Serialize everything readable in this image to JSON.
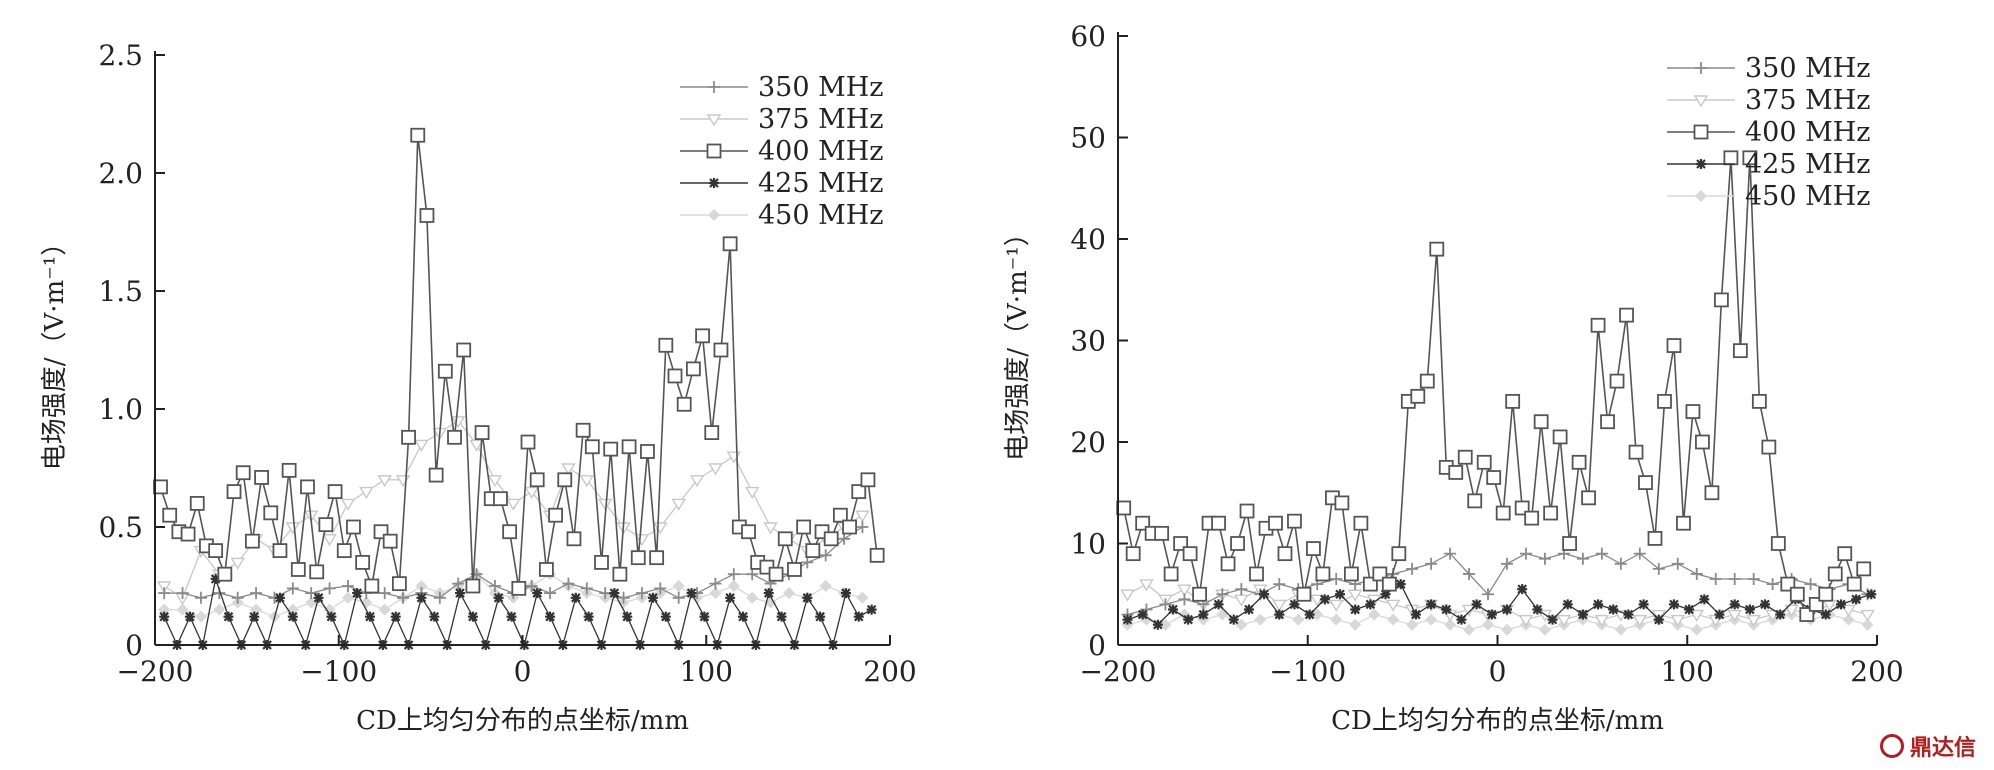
{
  "watermark": {
    "text": "鼎达信",
    "color": "#b21d1d"
  },
  "chart_data": [
    {
      "type": "line",
      "title": "",
      "xlabel": "CD上均匀分布的点坐标/mm",
      "ylabel": "电场强度/（V·m⁻¹）",
      "xlim": [
        -200,
        200
      ],
      "ylim": [
        0,
        2.5
      ],
      "xticks": [
        "−200",
        "−100",
        "0",
        "100",
        "200"
      ],
      "yticks": [
        "0",
        "0.5",
        "1.0",
        "1.5",
        "2.0",
        "2.5"
      ],
      "grid": false,
      "legend_position": "top-right",
      "series": [
        {
          "name": "350 MHz",
          "marker": "plus",
          "color": "#8a8a8a",
          "x": [
            -195,
            -185,
            -175,
            -165,
            -155,
            -145,
            -135,
            -125,
            -115,
            -105,
            -95,
            -85,
            -75,
            -65,
            -55,
            -45,
            -35,
            -25,
            -15,
            -5,
            5,
            15,
            25,
            35,
            45,
            55,
            65,
            75,
            85,
            95,
            105,
            115,
            125,
            135,
            145,
            155,
            165,
            175,
            185
          ],
          "y": [
            0.22,
            0.22,
            0.2,
            0.22,
            0.2,
            0.22,
            0.2,
            0.24,
            0.22,
            0.24,
            0.25,
            0.22,
            0.22,
            0.2,
            0.22,
            0.2,
            0.26,
            0.3,
            0.25,
            0.22,
            0.25,
            0.22,
            0.26,
            0.24,
            0.22,
            0.2,
            0.22,
            0.24,
            0.2,
            0.22,
            0.26,
            0.3,
            0.3,
            0.26,
            0.3,
            0.35,
            0.38,
            0.45,
            0.5
          ]
        },
        {
          "name": "375 MHz",
          "marker": "triangle-down",
          "color": "#c8c8c8",
          "x": [
            -195,
            -185,
            -175,
            -165,
            -155,
            -145,
            -135,
            -125,
            -115,
            -105,
            -95,
            -85,
            -75,
            -65,
            -55,
            -45,
            -35,
            -25,
            -15,
            -5,
            5,
            15,
            25,
            35,
            45,
            55,
            65,
            75,
            85,
            95,
            105,
            115,
            125,
            135,
            145,
            155,
            165,
            175,
            185
          ],
          "y": [
            0.25,
            0.2,
            0.4,
            0.3,
            0.35,
            0.45,
            0.4,
            0.5,
            0.55,
            0.45,
            0.6,
            0.65,
            0.7,
            0.7,
            0.85,
            0.9,
            0.95,
            0.85,
            0.7,
            0.6,
            0.65,
            0.55,
            0.75,
            0.7,
            0.6,
            0.5,
            0.45,
            0.5,
            0.6,
            0.7,
            0.75,
            0.8,
            0.65,
            0.5,
            0.45,
            0.4,
            0.45,
            0.5,
            0.55
          ]
        },
        {
          "name": "400 MHz",
          "marker": "square",
          "color": "#555555",
          "x": [
            -197,
            -192,
            -187,
            -182,
            -177,
            -172,
            -167,
            -162,
            -157,
            -152,
            -147,
            -142,
            -137,
            -132,
            -127,
            -122,
            -117,
            -112,
            -107,
            -102,
            -97,
            -92,
            -87,
            -82,
            -77,
            -72,
            -67,
            -62,
            -57,
            -52,
            -47,
            -42,
            -37,
            -32,
            -27,
            -22,
            -17,
            -12,
            -7,
            -2,
            3,
            8,
            13,
            18,
            23,
            28,
            33,
            38,
            43,
            48,
            53,
            58,
            63,
            68,
            73,
            78,
            83,
            88,
            93,
            98,
            103,
            108,
            113,
            118,
            123,
            128,
            133,
            138,
            143,
            148,
            153,
            158,
            163,
            168,
            173,
            178,
            183,
            188,
            193
          ],
          "y": [
            0.67,
            0.55,
            0.48,
            0.47,
            0.6,
            0.42,
            0.4,
            0.3,
            0.65,
            0.73,
            0.44,
            0.71,
            0.56,
            0.4,
            0.74,
            0.32,
            0.67,
            0.31,
            0.51,
            0.65,
            0.4,
            0.5,
            0.35,
            0.25,
            0.48,
            0.44,
            0.26,
            0.88,
            2.16,
            1.82,
            0.72,
            1.16,
            0.88,
            1.25,
            0.25,
            0.9,
            0.62,
            0.62,
            0.48,
            0.24,
            0.86,
            0.7,
            0.32,
            0.55,
            0.7,
            0.45,
            0.91,
            0.84,
            0.35,
            0.83,
            0.3,
            0.84,
            0.37,
            0.82,
            0.37,
            1.27,
            1.14,
            1.02,
            1.17,
            1.31,
            0.9,
            1.25,
            1.7,
            0.5,
            0.48,
            0.35,
            0.33,
            0.3,
            0.45,
            0.32,
            0.5,
            0.4,
            0.48,
            0.45,
            0.55,
            0.5,
            0.65,
            0.7,
            0.38
          ]
        },
        {
          "name": "425 MHz",
          "marker": "star",
          "color": "#333333",
          "x": [
            -195,
            -188,
            -181,
            -174,
            -167,
            -160,
            -153,
            -146,
            -139,
            -132,
            -125,
            -118,
            -111,
            -104,
            -97,
            -90,
            -83,
            -76,
            -69,
            -62,
            -55,
            -48,
            -41,
            -34,
            -27,
            -20,
            -13,
            -6,
            1,
            8,
            15,
            22,
            29,
            36,
            43,
            50,
            57,
            64,
            71,
            78,
            85,
            92,
            99,
            106,
            113,
            120,
            127,
            134,
            141,
            148,
            155,
            162,
            169,
            176,
            183,
            190
          ],
          "y": [
            0.12,
            0.0,
            0.12,
            0.0,
            0.28,
            0.12,
            0.0,
            0.12,
            0.0,
            0.2,
            0.12,
            0.0,
            0.2,
            0.12,
            0.0,
            0.22,
            0.12,
            0.0,
            0.12,
            0.0,
            0.2,
            0.12,
            0.0,
            0.22,
            0.12,
            0.0,
            0.2,
            0.12,
            0.0,
            0.22,
            0.12,
            0.0,
            0.2,
            0.12,
            0.0,
            0.22,
            0.12,
            0.0,
            0.2,
            0.12,
            0.0,
            0.22,
            0.12,
            0.0,
            0.2,
            0.12,
            0.0,
            0.22,
            0.12,
            0.0,
            0.2,
            0.12,
            0.0,
            0.22,
            0.12,
            0.15
          ]
        },
        {
          "name": "450 MHz",
          "marker": "diamond",
          "color": "#d8d8d8",
          "x": [
            -195,
            -185,
            -175,
            -165,
            -155,
            -145,
            -135,
            -125,
            -115,
            -105,
            -95,
            -85,
            -75,
            -65,
            -55,
            -45,
            -35,
            -25,
            -15,
            -5,
            5,
            15,
            25,
            35,
            45,
            55,
            65,
            75,
            85,
            95,
            105,
            115,
            125,
            135,
            145,
            155,
            165,
            175,
            185
          ],
          "y": [
            0.15,
            0.15,
            0.12,
            0.15,
            0.18,
            0.15,
            0.12,
            0.15,
            0.18,
            0.15,
            0.2,
            0.18,
            0.15,
            0.2,
            0.25,
            0.22,
            0.25,
            0.3,
            0.22,
            0.2,
            0.25,
            0.3,
            0.25,
            0.22,
            0.2,
            0.18,
            0.2,
            0.22,
            0.25,
            0.2,
            0.22,
            0.25,
            0.2,
            0.18,
            0.22,
            0.2,
            0.25,
            0.22,
            0.2
          ]
        }
      ]
    },
    {
      "type": "line",
      "title": "",
      "xlabel": "CD上均匀分布的点坐标/mm",
      "ylabel": "电场强度/（V·m⁻¹）",
      "xlim": [
        -200,
        200
      ],
      "ylim": [
        0,
        60
      ],
      "xticks": [
        "−200",
        "−100",
        "0",
        "100",
        "200"
      ],
      "yticks": [
        "0",
        "10",
        "20",
        "30",
        "40",
        "50",
        "60"
      ],
      "grid": false,
      "legend_position": "top-right",
      "series": [
        {
          "name": "350 MHz",
          "marker": "plus",
          "color": "#8a8a8a",
          "x": [
            -195,
            -185,
            -175,
            -165,
            -155,
            -145,
            -135,
            -125,
            -115,
            -105,
            -95,
            -85,
            -75,
            -65,
            -55,
            -45,
            -35,
            -25,
            -15,
            -5,
            5,
            15,
            25,
            35,
            45,
            55,
            65,
            75,
            85,
            95,
            105,
            115,
            125,
            135,
            145,
            155,
            165,
            175,
            185,
            195
          ],
          "y": [
            3,
            3.5,
            4,
            4.5,
            4,
            5,
            5.5,
            5,
            6,
            5.5,
            6,
            6.5,
            6,
            6.5,
            7,
            7.5,
            8,
            9,
            7,
            5,
            8,
            9,
            8.5,
            9,
            8.5,
            9,
            8,
            9,
            7.5,
            8,
            7,
            6.5,
            6.5,
            6.5,
            6,
            6.5,
            6,
            5.5,
            6,
            5
          ]
        },
        {
          "name": "375 MHz",
          "marker": "triangle-down",
          "color": "#c8c8c8",
          "x": [
            -195,
            -185,
            -175,
            -165,
            -155,
            -145,
            -135,
            -125,
            -115,
            -105,
            -95,
            -85,
            -75,
            -65,
            -55,
            -45,
            -35,
            -25,
            -15,
            -5,
            5,
            15,
            25,
            35,
            45,
            55,
            65,
            75,
            85,
            95,
            105,
            115,
            125,
            135,
            145,
            155,
            165,
            175,
            185,
            195
          ],
          "y": [
            5,
            6,
            4.5,
            5.5,
            4,
            5,
            4.5,
            5.5,
            4,
            5,
            4.5,
            4,
            5,
            4.5,
            4,
            3.5,
            4,
            3,
            3.5,
            3,
            3.5,
            2.5,
            3,
            2.5,
            3,
            2.5,
            3,
            2.5,
            3,
            2.5,
            3,
            2.5,
            3,
            2.5,
            3,
            3.5,
            3,
            4,
            3.5,
            3
          ]
        },
        {
          "name": "400 MHz",
          "marker": "square",
          "color": "#555555",
          "x": [
            -197,
            -192,
            -187,
            -182,
            -177,
            -172,
            -167,
            -162,
            -157,
            -152,
            -147,
            -142,
            -137,
            -132,
            -127,
            -122,
            -117,
            -112,
            -107,
            -102,
            -97,
            -92,
            -87,
            -82,
            -77,
            -72,
            -67,
            -62,
            -57,
            -52,
            -47,
            -42,
            -37,
            -32,
            -27,
            -22,
            -17,
            -12,
            -7,
            -2,
            3,
            8,
            13,
            18,
            23,
            28,
            33,
            38,
            43,
            48,
            53,
            58,
            63,
            68,
            73,
            78,
            83,
            88,
            93,
            98,
            103,
            108,
            113,
            118,
            123,
            128,
            133,
            138,
            143,
            148,
            153,
            158,
            163,
            168,
            173,
            178,
            183,
            188,
            193
          ],
          "y": [
            13.5,
            9,
            12,
            11,
            11,
            7,
            10,
            9,
            5,
            12,
            12,
            8,
            10,
            13.2,
            7,
            11.5,
            12,
            9,
            12.2,
            5,
            9.5,
            7,
            14.5,
            14,
            7,
            12,
            6,
            7,
            6,
            9,
            24,
            24.5,
            26,
            39,
            17.5,
            17,
            18.5,
            14.2,
            18,
            16.5,
            13,
            24,
            13.5,
            12.5,
            22,
            13,
            20.5,
            10,
            18,
            14.5,
            31.5,
            22,
            26,
            32.5,
            19,
            16,
            10.5,
            24,
            29.5,
            12,
            23,
            20,
            15,
            34,
            48,
            29,
            48,
            24,
            19.5,
            10,
            6,
            5,
            3,
            4,
            5,
            7,
            9,
            6,
            7.5
          ]
        },
        {
          "name": "425 MHz",
          "marker": "star",
          "color": "#333333",
          "x": [
            -195,
            -187,
            -179,
            -171,
            -163,
            -155,
            -147,
            -139,
            -131,
            -123,
            -115,
            -107,
            -99,
            -91,
            -83,
            -75,
            -67,
            -59,
            -51,
            -43,
            -35,
            -27,
            -19,
            -11,
            -3,
            5,
            13,
            21,
            29,
            37,
            45,
            53,
            61,
            69,
            77,
            85,
            93,
            101,
            109,
            117,
            125,
            133,
            141,
            149,
            157,
            165,
            173,
            181,
            189,
            197
          ],
          "y": [
            2.5,
            3,
            2,
            3.5,
            2.5,
            3,
            4,
            2.5,
            3.5,
            5,
            3,
            4,
            3,
            4.5,
            5,
            3.5,
            4,
            5,
            6,
            3,
            4,
            3.5,
            2.5,
            4,
            3,
            3.5,
            5.5,
            3.5,
            2.5,
            4,
            3,
            4,
            3.5,
            3,
            4,
            2.5,
            4,
            3.5,
            4.5,
            3,
            4,
            3.5,
            4,
            3,
            4.5,
            3.5,
            3,
            4,
            4.5,
            5
          ]
        },
        {
          "name": "450 MHz",
          "marker": "diamond",
          "color": "#d8d8d8",
          "x": [
            -195,
            -185,
            -175,
            -165,
            -155,
            -145,
            -135,
            -125,
            -115,
            -105,
            -95,
            -85,
            -75,
            -65,
            -55,
            -45,
            -35,
            -25,
            -15,
            -5,
            5,
            15,
            25,
            35,
            45,
            55,
            65,
            75,
            85,
            95,
            105,
            115,
            125,
            135,
            145,
            155,
            165,
            175,
            185,
            195
          ],
          "y": [
            2,
            2.5,
            2,
            3,
            2.5,
            3,
            2,
            2.5,
            3,
            2.5,
            3,
            2.5,
            2,
            3,
            2.5,
            2,
            2.5,
            2,
            1.5,
            2,
            1.5,
            2,
            1.5,
            2,
            2.5,
            2,
            1.5,
            2,
            2.5,
            2,
            1.5,
            2,
            2.5,
            2,
            2.5,
            3,
            2.5,
            3,
            2.5,
            2
          ]
        }
      ]
    }
  ]
}
